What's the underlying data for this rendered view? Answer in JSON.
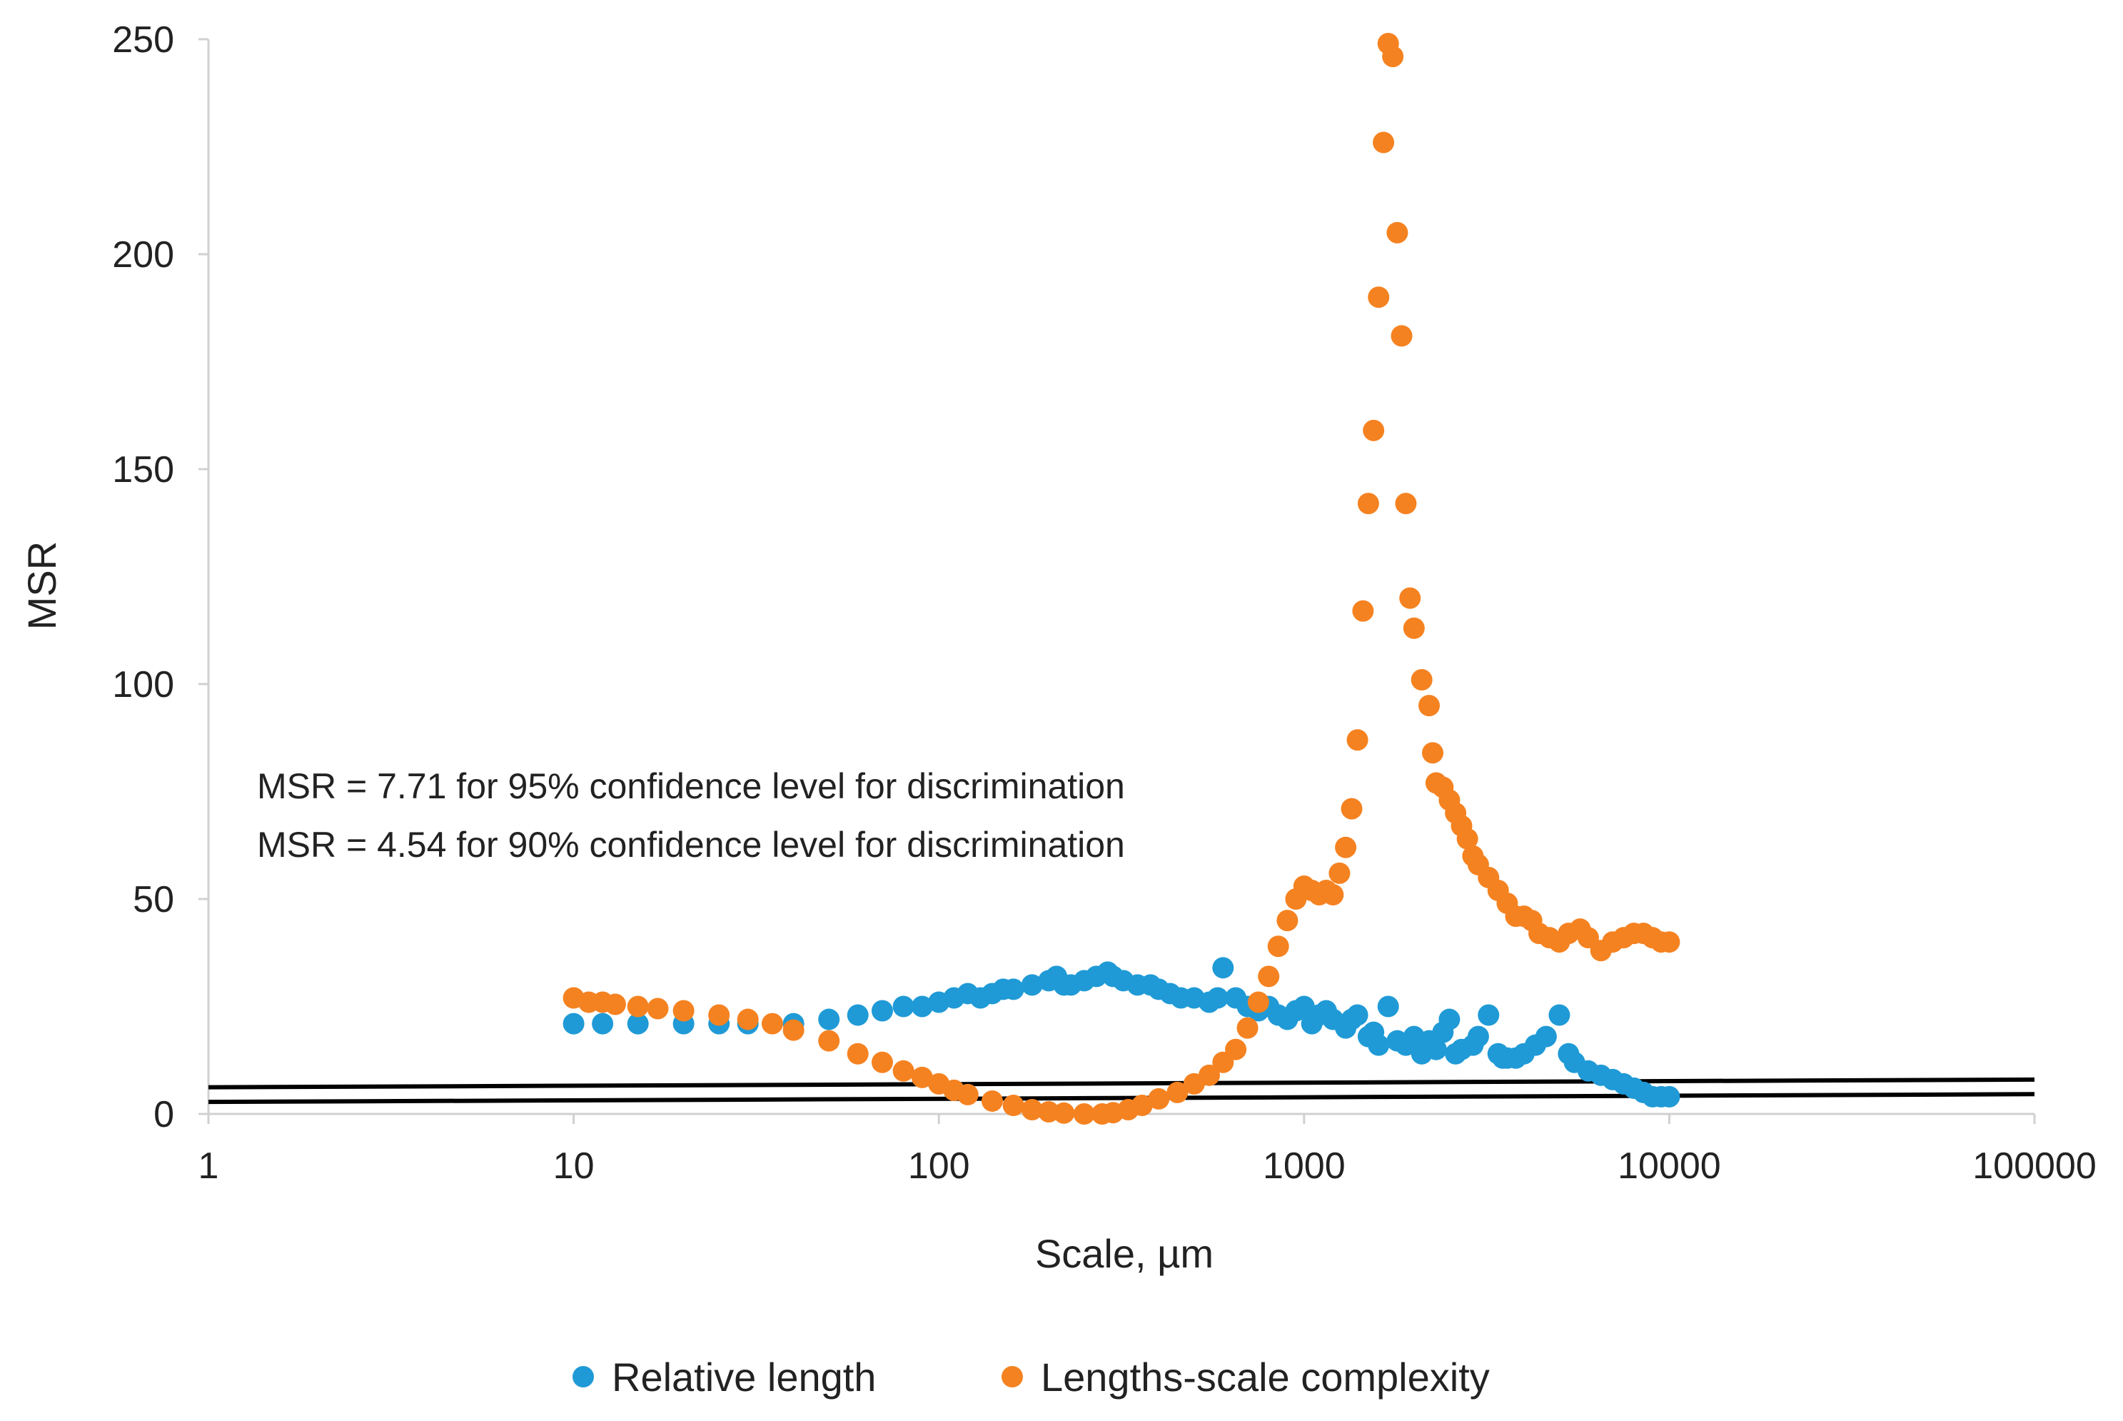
{
  "chart_data": {
    "type": "scatter",
    "title": "",
    "xlabel": "Scale, µm",
    "ylabel": "MSR",
    "xscale": "log",
    "xlim": [
      1,
      100000
    ],
    "ylim": [
      0,
      250
    ],
    "x_ticks": [
      1,
      10,
      100,
      1000,
      10000,
      100000
    ],
    "x_tick_labels": [
      "1",
      "10",
      "100",
      "1000",
      "10000",
      "100000"
    ],
    "y_ticks": [
      0,
      50,
      100,
      150,
      200,
      250
    ],
    "y_tick_labels": [
      "0",
      "50",
      "100",
      "150",
      "200",
      "250"
    ],
    "grid": false,
    "legend_position": "bottom",
    "annotations": [
      "MSR = 7.71 for 95% confidence level for discrimination",
      "MSR = 4.54 for 90% confidence level for discrimination"
    ],
    "reference_lines": [
      {
        "name": "95% threshold",
        "x": [
          1,
          100000
        ],
        "y": [
          6.2,
          8.0
        ],
        "color": "#000000"
      },
      {
        "name": "90% threshold",
        "x": [
          1,
          100000
        ],
        "y": [
          2.8,
          4.6
        ],
        "color": "#000000"
      }
    ],
    "series": [
      {
        "name": "Relative length",
        "color": "#1f9ad6",
        "x": [
          10,
          12,
          15,
          20,
          25,
          30,
          40,
          50,
          60,
          70,
          80,
          90,
          100,
          110,
          120,
          130,
          140,
          150,
          160,
          180,
          200,
          210,
          220,
          230,
          250,
          270,
          290,
          300,
          320,
          350,
          380,
          400,
          430,
          460,
          500,
          550,
          580,
          600,
          650,
          700,
          750,
          800,
          850,
          900,
          950,
          1000,
          1050,
          1100,
          1150,
          1200,
          1300,
          1350,
          1400,
          1500,
          1550,
          1600,
          1700,
          1800,
          1900,
          2000,
          2100,
          2200,
          2300,
          2400,
          2500,
          2600,
          2700,
          2900,
          3000,
          3200,
          3400,
          3500,
          3600,
          3800,
          4000,
          4300,
          4600,
          5000,
          5300,
          5500,
          6000,
          6500,
          7000,
          7500,
          8000,
          8500,
          9000,
          9500,
          10000
        ],
        "y": [
          21,
          21,
          21,
          21,
          21,
          21,
          21,
          22,
          23,
          24,
          25,
          25,
          26,
          27,
          28,
          27,
          28,
          29,
          29,
          30,
          31,
          32,
          30,
          30,
          31,
          32,
          33,
          32,
          31,
          30,
          30,
          29,
          28,
          27,
          27,
          26,
          27,
          34,
          27,
          25,
          24,
          25,
          23,
          22,
          24,
          25,
          21,
          23,
          24,
          22,
          20,
          22,
          23,
          18,
          19,
          16,
          25,
          17,
          16,
          18,
          14,
          17,
          15,
          19,
          22,
          14,
          15,
          16,
          18,
          23,
          14,
          13,
          13,
          13,
          14,
          16,
          18,
          23,
          14,
          12,
          10,
          9,
          8,
          7,
          6,
          5,
          4,
          4,
          4
        ]
      },
      {
        "name": "Lengths-scale complexity",
        "color": "#f58220",
        "x": [
          10,
          11,
          12,
          13,
          15,
          17,
          20,
          25,
          30,
          35,
          40,
          50,
          60,
          70,
          80,
          90,
          100,
          110,
          120,
          140,
          160,
          180,
          200,
          220,
          250,
          280,
          300,
          330,
          360,
          400,
          450,
          500,
          550,
          600,
          650,
          700,
          750,
          800,
          850,
          900,
          950,
          1000,
          1050,
          1100,
          1150,
          1200,
          1250,
          1300,
          1350,
          1400,
          1450,
          1500,
          1550,
          1600,
          1650,
          1700,
          1750,
          1800,
          1850,
          1900,
          1950,
          2000,
          2100,
          2200,
          2250,
          2300,
          2400,
          2500,
          2600,
          2700,
          2800,
          2900,
          3000,
          3200,
          3400,
          3600,
          3800,
          4000,
          4200,
          4400,
          4700,
          5000,
          5300,
          5700,
          6000,
          6500,
          7000,
          7500,
          8000,
          8500,
          9000,
          9500,
          10000
        ],
        "y": [
          27,
          26,
          26,
          25.5,
          25,
          24.5,
          24,
          23,
          22,
          21,
          19.5,
          17,
          14,
          12,
          10,
          8.5,
          7,
          5.5,
          4.5,
          3,
          2,
          1,
          0.5,
          0.2,
          0,
          0,
          0.3,
          1,
          2,
          3.5,
          5,
          7,
          9,
          12,
          15,
          20,
          26,
          32,
          39,
          45,
          50,
          53,
          52,
          51,
          52,
          51,
          56,
          62,
          71,
          87,
          117,
          142,
          159,
          190,
          226,
          249,
          246,
          205,
          181,
          142,
          120,
          113,
          101,
          95,
          84,
          77,
          76,
          73,
          70,
          67,
          64,
          60,
          58,
          55,
          52,
          49,
          46,
          46,
          45,
          42,
          41,
          40,
          42,
          43,
          41,
          38,
          40,
          41,
          42,
          42,
          41,
          40,
          40
        ]
      }
    ]
  }
}
